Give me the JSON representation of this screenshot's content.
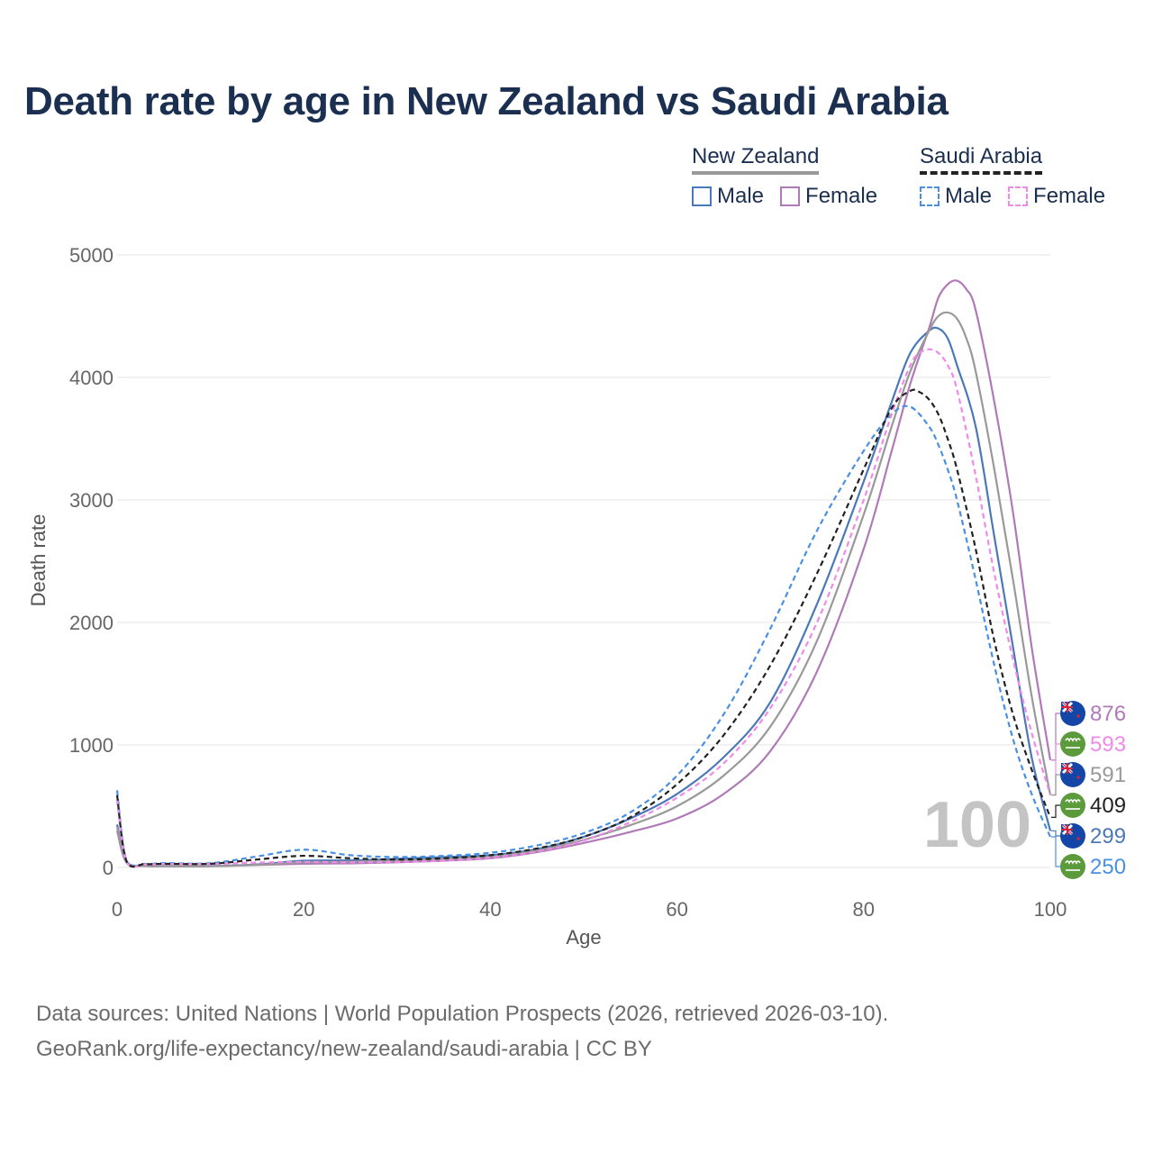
{
  "title": "Death rate by age in New Zealand vs Saudi Arabia",
  "legend": {
    "groups": [
      {
        "name": "New Zealand",
        "line_color": "#999999",
        "line_style": "solid",
        "items": [
          {
            "label": "Male",
            "color": "#4a78b8"
          },
          {
            "label": "Female",
            "color": "#b07ab8"
          }
        ]
      },
      {
        "name": "Saudi Arabia",
        "line_color": "#222222",
        "line_style": "dashed",
        "items": [
          {
            "label": "Male",
            "color": "#4a90e2"
          },
          {
            "label": "Female",
            "color": "#f08ae8"
          }
        ]
      }
    ]
  },
  "year_label": "100",
  "end_labels": [
    {
      "value": "876",
      "color": "#b07ab8",
      "flag": "new-zealand-flag"
    },
    {
      "value": "593",
      "color": "#f08ae8",
      "flag": "saudi-arabia-flag"
    },
    {
      "value": "591",
      "color": "#999999",
      "flag": "new-zealand-flag"
    },
    {
      "value": "409",
      "color": "#222222",
      "flag": "saudi-arabia-flag"
    },
    {
      "value": "299",
      "color": "#4a78b8",
      "flag": "new-zealand-flag"
    },
    {
      "value": "250",
      "color": "#4a90e2",
      "flag": "saudi-arabia-flag"
    }
  ],
  "footer": {
    "line1": "Data sources: United Nations | World Population Prospects (2026, retrieved 2026-03-10).",
    "line2": "GeoRank.org/life-expectancy/new-zealand/saudi-arabia | CC BY"
  },
  "chart_data": {
    "type": "line",
    "title": "Death rate by age in New Zealand vs Saudi Arabia",
    "xlabel": "Age",
    "ylabel": "Death rate",
    "xlim": [
      0,
      100
    ],
    "ylim": [
      0,
      5000
    ],
    "xticks": [
      0,
      20,
      40,
      60,
      80,
      100
    ],
    "yticks": [
      0,
      1000,
      2000,
      3000,
      4000,
      5000
    ],
    "grid": true,
    "series": [
      {
        "name": "New Zealand Male",
        "color": "#4a78b8",
        "dash": false,
        "x": [
          0,
          1,
          3,
          5,
          10,
          15,
          20,
          25,
          30,
          35,
          40,
          45,
          50,
          55,
          60,
          65,
          70,
          75,
          80,
          83,
          85,
          87,
          88,
          89,
          90,
          92,
          94,
          96,
          98,
          100
        ],
        "y": [
          350,
          50,
          15,
          12,
          12,
          25,
          55,
          58,
          70,
          85,
          100,
          150,
          250,
          400,
          600,
          900,
          1350,
          2150,
          3150,
          3800,
          4200,
          4380,
          4400,
          4320,
          4100,
          3600,
          2700,
          1800,
          900,
          299
        ]
      },
      {
        "name": "New Zealand Female",
        "color": "#b07ab8",
        "dash": false,
        "x": [
          0,
          1,
          3,
          5,
          10,
          15,
          20,
          25,
          30,
          35,
          40,
          45,
          50,
          55,
          60,
          65,
          70,
          75,
          80,
          83,
          85,
          87,
          88,
          89,
          90,
          91,
          92,
          94,
          96,
          98,
          100
        ],
        "y": [
          300,
          40,
          12,
          10,
          10,
          20,
          30,
          33,
          42,
          55,
          75,
          125,
          200,
          290,
          400,
          600,
          950,
          1600,
          2600,
          3400,
          3950,
          4400,
          4650,
          4760,
          4790,
          4720,
          4550,
          3800,
          2900,
          1800,
          876
        ]
      },
      {
        "name": "New Zealand Total",
        "color": "#999999",
        "dash": false,
        "x": [
          0,
          1,
          3,
          5,
          10,
          15,
          20,
          25,
          30,
          35,
          40,
          45,
          50,
          55,
          60,
          65,
          70,
          75,
          80,
          83,
          85,
          87,
          88,
          89,
          90,
          91,
          92,
          94,
          96,
          98,
          100
        ],
        "y": [
          330,
          45,
          14,
          11,
          11,
          22,
          43,
          46,
          56,
          70,
          88,
          138,
          225,
          345,
          500,
          750,
          1150,
          1850,
          2880,
          3600,
          4050,
          4380,
          4500,
          4530,
          4480,
          4320,
          4050,
          3250,
          2350,
          1400,
          591
        ]
      },
      {
        "name": "Saudi Arabia Male",
        "color": "#4a90e2",
        "dash": true,
        "x": [
          0,
          1,
          3,
          5,
          10,
          15,
          20,
          25,
          30,
          35,
          40,
          45,
          50,
          55,
          60,
          65,
          70,
          75,
          80,
          83,
          85,
          87,
          88,
          89,
          90,
          92,
          94,
          96,
          98,
          100
        ],
        "y": [
          630,
          60,
          30,
          35,
          35,
          90,
          145,
          100,
          85,
          95,
          120,
          180,
          280,
          450,
          750,
          1250,
          1950,
          2750,
          3400,
          3700,
          3760,
          3600,
          3450,
          3250,
          3000,
          2350,
          1650,
          1050,
          600,
          250
        ]
      },
      {
        "name": "Saudi Arabia Female",
        "color": "#f08ae8",
        "dash": true,
        "x": [
          0,
          1,
          3,
          5,
          10,
          15,
          20,
          25,
          30,
          35,
          40,
          45,
          50,
          55,
          60,
          65,
          70,
          75,
          80,
          83,
          85,
          86,
          87,
          88,
          89,
          90,
          92,
          94,
          96,
          98,
          100
        ],
        "y": [
          550,
          50,
          25,
          28,
          28,
          40,
          45,
          42,
          45,
          55,
          80,
          130,
          220,
          370,
          570,
          850,
          1300,
          2000,
          3000,
          3700,
          4100,
          4200,
          4230,
          4200,
          4100,
          3900,
          3200,
          2400,
          1700,
          1100,
          593
        ]
      },
      {
        "name": "Saudi Arabia Total",
        "color": "#222222",
        "dash": true,
        "x": [
          0,
          1,
          3,
          5,
          10,
          15,
          20,
          25,
          30,
          35,
          40,
          45,
          50,
          55,
          60,
          65,
          70,
          75,
          80,
          83,
          85,
          86,
          87,
          88,
          89,
          90,
          92,
          94,
          96,
          98,
          100
        ],
        "y": [
          590,
          55,
          28,
          30,
          30,
          65,
          95,
          75,
          65,
          75,
          100,
          155,
          250,
          410,
          680,
          1080,
          1650,
          2400,
          3250,
          3750,
          3890,
          3880,
          3820,
          3700,
          3500,
          3250,
          2600,
          1850,
          1250,
          800,
          409
        ]
      }
    ]
  }
}
